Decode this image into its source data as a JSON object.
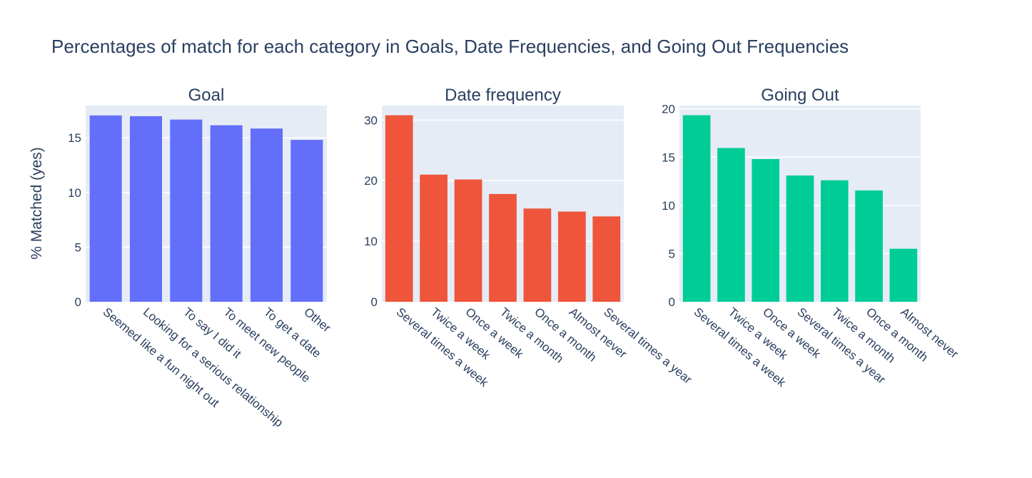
{
  "title": "Percentages of match for each category in Goals, Date Frequencies, and Going Out Frequencies",
  "ylabel": "% Matched (yes)",
  "chart_data": [
    {
      "type": "bar",
      "title": "Goal",
      "color": "#636efa",
      "categories": [
        "Seemed like a fun night out",
        "Looking for a serious relationship",
        "To say I did it",
        "To meet new people",
        "To get a date",
        "Other"
      ],
      "values": [
        17.05,
        16.98,
        16.67,
        16.15,
        15.85,
        14.81
      ],
      "yticks": [
        0,
        5,
        10,
        15
      ],
      "ylim": [
        0,
        17.95
      ]
    },
    {
      "type": "bar",
      "title": "Date frequency",
      "color": "#ef553b",
      "categories": [
        "Several times a week",
        "Twice a week",
        "Once a week",
        "Twice a month",
        "Once a month",
        "Almost never",
        "Several times a year"
      ],
      "values": [
        30.8,
        21.0,
        20.2,
        17.8,
        15.4,
        14.9,
        14.1
      ],
      "yticks": [
        0,
        10,
        20,
        30
      ],
      "ylim": [
        0,
        32.4
      ]
    },
    {
      "type": "bar",
      "title": "Going Out",
      "color": "#00cc96",
      "categories": [
        "Several times a week",
        "Twice a week",
        "Once a week",
        "Several times a year",
        "Twice a month",
        "Once a month",
        "Almost never"
      ],
      "values": [
        19.35,
        15.95,
        14.8,
        13.1,
        12.6,
        11.55,
        5.5
      ],
      "yticks": [
        0,
        5,
        10,
        15,
        20
      ],
      "ylim": [
        0,
        20.35
      ]
    }
  ]
}
